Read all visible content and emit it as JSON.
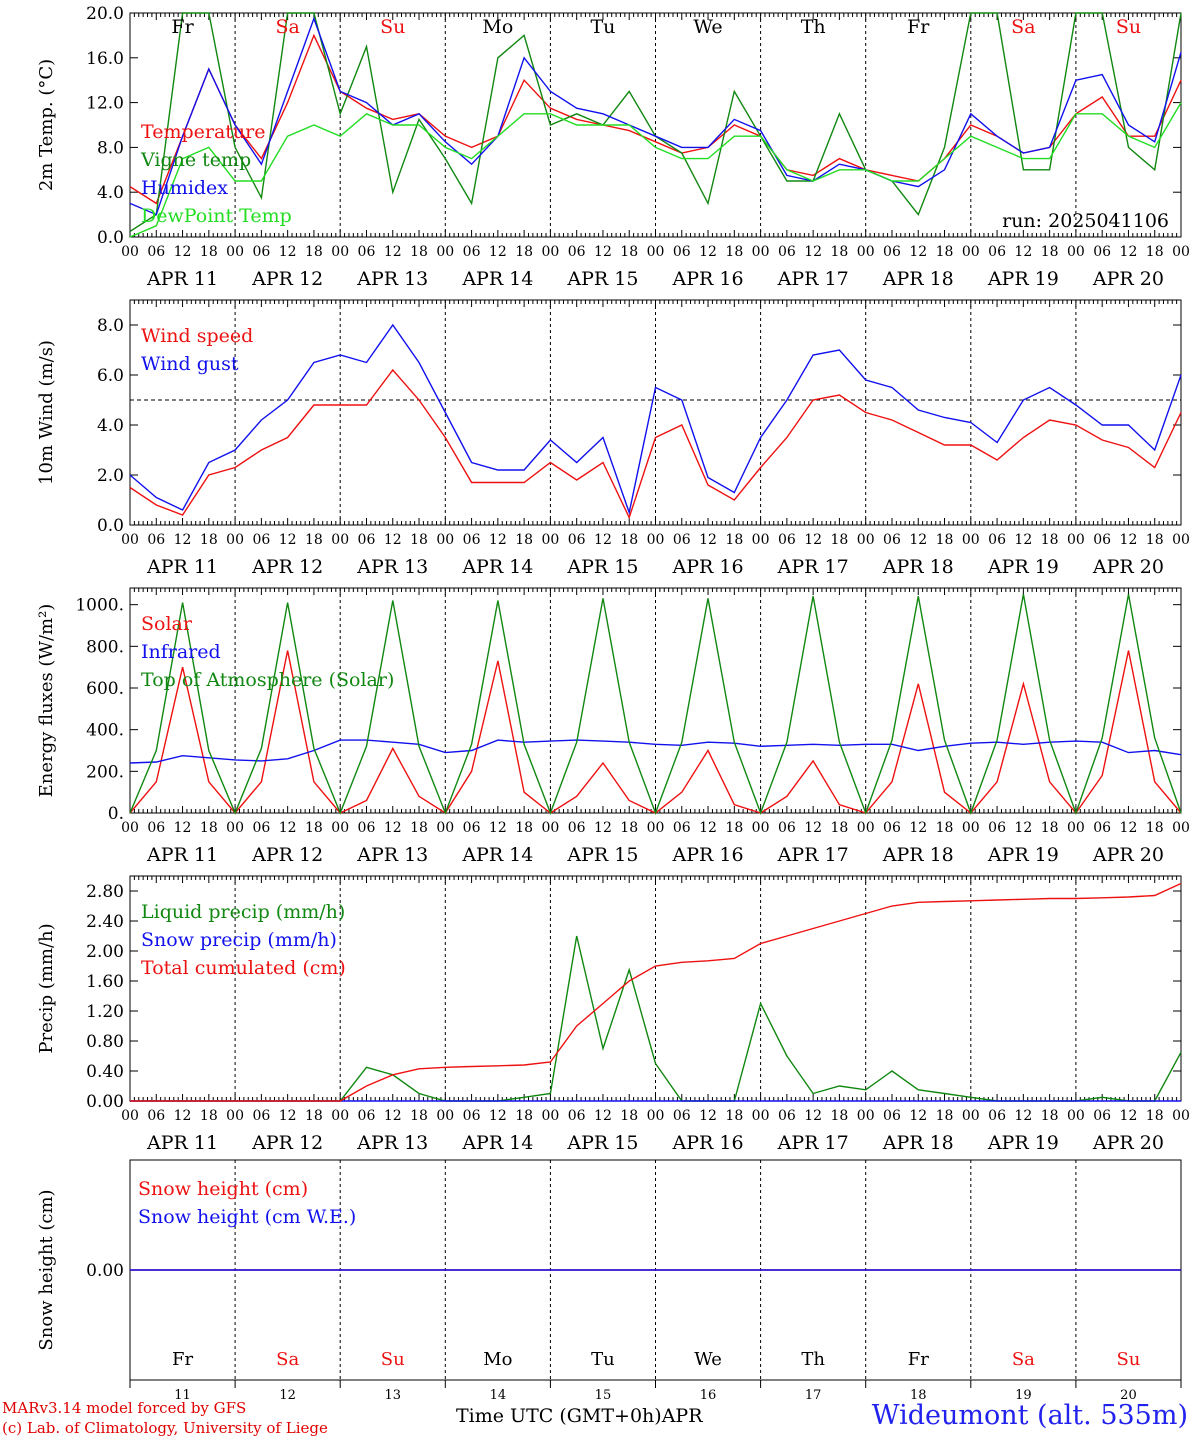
{
  "footer": {
    "model_line": "MARv3.14 model forced by GFS",
    "credit_line": "(c) Lab. of Climatology, University of Liege",
    "time_label": "Time UTC (GMT+0h)",
    "month_label": "APR",
    "station": "Wideumont (alt. 535m)"
  },
  "run_label": "run: 2025041106",
  "days": [
    "APR 11",
    "APR 12",
    "APR 13",
    "APR 14",
    "APR 15",
    "APR 16",
    "APR 17",
    "APR 18",
    "APR 19",
    "APR 20"
  ],
  "day_numbers": [
    "11",
    "12",
    "13",
    "14",
    "15",
    "16",
    "17",
    "18",
    "19",
    "20"
  ],
  "weekdays": [
    "Fr",
    "Sa",
    "Su",
    "Mo",
    "Tu",
    "We",
    "Th",
    "Fr",
    "Sa",
    "Su"
  ],
  "weekend_flags": [
    false,
    true,
    true,
    false,
    false,
    false,
    false,
    false,
    true,
    true
  ],
  "hour_ticks": [
    "00",
    "06",
    "12",
    "18"
  ],
  "colors": {
    "red": "#ee1111",
    "blue": "#1111ee",
    "green": "#118811",
    "lightgreen": "#22dd22",
    "weekend": "#ee1111"
  },
  "chart_data": [
    {
      "type": "line",
      "ylabel": "2m Temp. (°C)",
      "ylim": [
        0,
        20
      ],
      "yticks": [
        "0.0",
        "4.0",
        "8.0",
        "12.0",
        "16.0",
        "20.0"
      ],
      "x": [
        0,
        6,
        12,
        18,
        24,
        30,
        36,
        42,
        48,
        54,
        60,
        66,
        72,
        78,
        84,
        90,
        96,
        102,
        108,
        114,
        120,
        126,
        132,
        138,
        144,
        150,
        156,
        162,
        168,
        174,
        180,
        186,
        192,
        198,
        204,
        210,
        216,
        222,
        228,
        234,
        240
      ],
      "series": [
        {
          "name": "Temperature",
          "color": "#ee1111",
          "values": [
            4.5,
            3,
            9,
            15,
            10,
            7,
            12,
            18,
            13,
            11.5,
            10.5,
            11,
            9,
            8,
            9,
            14,
            11.5,
            10.5,
            10,
            9.5,
            8.5,
            7.5,
            8,
            10,
            9,
            6,
            5.5,
            7,
            6,
            5.5,
            5,
            7,
            10,
            9,
            7.5,
            8,
            11,
            12.5,
            9,
            9,
            14
          ]
        },
        {
          "name": "Vigne temp",
          "color": "#118811",
          "values": [
            0.5,
            2,
            20,
            20,
            8,
            3.5,
            20,
            20,
            11,
            17,
            4,
            10.5,
            7,
            3,
            16,
            18,
            10,
            11,
            10,
            13,
            9,
            7.5,
            3,
            13,
            9,
            5,
            5,
            11,
            6,
            5,
            2,
            8,
            20,
            20,
            6,
            6,
            20,
            20,
            8,
            6,
            20
          ]
        },
        {
          "name": "Humidex",
          "color": "#1111ee",
          "values": [
            3,
            2,
            9,
            15,
            10,
            6.5,
            13,
            19.5,
            13,
            12,
            10,
            11,
            8.5,
            6.5,
            9,
            16,
            13,
            11.5,
            11,
            10,
            9,
            8,
            8,
            10.5,
            9.5,
            5.5,
            5,
            6.5,
            6,
            5,
            4.5,
            6,
            11,
            9,
            7.5,
            8,
            14,
            14.5,
            10,
            8.5,
            16.5
          ]
        },
        {
          "name": "DewPoint Temp",
          "color": "#22dd22",
          "values": [
            0,
            1,
            7,
            8,
            5,
            5,
            9,
            10,
            9,
            11,
            10,
            10,
            8,
            7,
            9,
            11,
            11,
            10,
            10,
            10,
            8,
            7,
            7,
            9,
            9,
            6,
            5,
            6,
            6,
            5,
            5,
            7,
            9,
            8,
            7,
            7,
            11,
            11,
            9,
            8,
            12
          ]
        }
      ]
    },
    {
      "type": "line",
      "ylabel": "10m Wind (m/s)",
      "ylim": [
        0,
        9
      ],
      "yticks": [
        "0.0",
        "2.0",
        "4.0",
        "6.0",
        "8.0"
      ],
      "reference_line": 5,
      "x": [
        0,
        6,
        12,
        18,
        24,
        30,
        36,
        42,
        48,
        54,
        60,
        66,
        72,
        78,
        84,
        90,
        96,
        102,
        108,
        114,
        120,
        126,
        132,
        138,
        144,
        150,
        156,
        162,
        168,
        174,
        180,
        186,
        192,
        198,
        204,
        210,
        216,
        222,
        228,
        234,
        240
      ],
      "series": [
        {
          "name": "Wind speed",
          "color": "#ee1111",
          "values": [
            1.5,
            0.8,
            0.4,
            2,
            2.3,
            3,
            3.5,
            4.8,
            4.8,
            4.8,
            6.2,
            5,
            3.5,
            1.7,
            1.7,
            1.7,
            2.5,
            1.8,
            2.5,
            0.3,
            3.5,
            4,
            1.6,
            1,
            2.3,
            3.5,
            5.0,
            5.2,
            4.5,
            4.2,
            3.7,
            3.2,
            3.2,
            2.6,
            3.5,
            4.2,
            4.0,
            3.4,
            3.1,
            2.3,
            4.5
          ]
        },
        {
          "name": "Wind gust",
          "color": "#1111ee",
          "values": [
            2,
            1.1,
            0.6,
            2.5,
            3,
            4.2,
            5,
            6.5,
            6.8,
            6.5,
            8,
            6.5,
            4.5,
            2.5,
            2.2,
            2.2,
            3.4,
            2.5,
            3.5,
            0.5,
            5.5,
            5,
            1.9,
            1.3,
            3.5,
            5,
            6.8,
            7.0,
            5.8,
            5.5,
            4.6,
            4.3,
            4.1,
            3.3,
            5,
            5.5,
            4.8,
            4.0,
            4.0,
            3.0,
            6.0
          ]
        }
      ]
    },
    {
      "type": "line",
      "ylabel": "Energy fluxes (W/m²)",
      "ylim": [
        0,
        1080
      ],
      "yticks": [
        "0.",
        "200.",
        "400.",
        "600.",
        "800.",
        "1000."
      ],
      "x": [
        0,
        6,
        12,
        18,
        24,
        30,
        36,
        42,
        48,
        54,
        60,
        66,
        72,
        78,
        84,
        90,
        96,
        102,
        108,
        114,
        120,
        126,
        132,
        138,
        144,
        150,
        156,
        162,
        168,
        174,
        180,
        186,
        192,
        198,
        204,
        210,
        216,
        222,
        228,
        234,
        240
      ],
      "series": [
        {
          "name": "Solar",
          "color": "#ee1111",
          "values": [
            0,
            150,
            700,
            150,
            0,
            150,
            780,
            150,
            0,
            60,
            310,
            80,
            0,
            200,
            730,
            100,
            0,
            80,
            240,
            60,
            0,
            100,
            300,
            40,
            0,
            80,
            250,
            40,
            0,
            150,
            620,
            100,
            0,
            150,
            620,
            150,
            0,
            180,
            780,
            150,
            0
          ]
        },
        {
          "name": "Infrared",
          "color": "#1111ee",
          "values": [
            240,
            245,
            275,
            265,
            255,
            250,
            260,
            300,
            350,
            350,
            340,
            330,
            290,
            300,
            350,
            340,
            345,
            350,
            345,
            340,
            330,
            325,
            340,
            335,
            320,
            325,
            330,
            325,
            330,
            330,
            300,
            320,
            335,
            340,
            330,
            340,
            345,
            340,
            290,
            300,
            280
          ]
        },
        {
          "name": "Top of Atmosphere (Solar)",
          "color": "#118811",
          "values": [
            0,
            300,
            1010,
            300,
            0,
            310,
            1010,
            310,
            0,
            320,
            1020,
            320,
            0,
            330,
            1020,
            330,
            0,
            340,
            1030,
            340,
            0,
            340,
            1030,
            340,
            0,
            340,
            1040,
            340,
            0,
            350,
            1040,
            350,
            0,
            350,
            1050,
            350,
            0,
            360,
            1050,
            360,
            0
          ]
        }
      ]
    },
    {
      "type": "line",
      "ylabel": "Precip (mm/h)",
      "ylim": [
        0,
        3.0
      ],
      "yticks": [
        "0.00",
        "0.40",
        "0.80",
        "1.20",
        "1.60",
        "2.00",
        "2.40",
        "2.80"
      ],
      "x": [
        0,
        6,
        12,
        18,
        24,
        30,
        36,
        42,
        48,
        54,
        60,
        66,
        72,
        78,
        84,
        90,
        96,
        102,
        108,
        114,
        120,
        126,
        132,
        138,
        144,
        150,
        156,
        162,
        168,
        174,
        180,
        186,
        192,
        198,
        204,
        210,
        216,
        222,
        228,
        234,
        240
      ],
      "series": [
        {
          "name": "Liquid precip (mm/h)",
          "color": "#118811",
          "values": [
            0,
            0,
            0,
            0,
            0,
            0,
            0,
            0,
            0,
            0.45,
            0.35,
            0.1,
            0,
            0,
            0,
            0.05,
            0.1,
            2.2,
            0.7,
            1.75,
            0.5,
            0,
            0,
            0,
            1.3,
            0.6,
            0.1,
            0.2,
            0.15,
            0.4,
            0.15,
            0.1,
            0.05,
            0,
            0,
            0,
            0,
            0.05,
            0,
            0,
            0.65
          ]
        },
        {
          "name": "Snow precip (mm/h)",
          "color": "#1111ee",
          "values": [
            0,
            0,
            0,
            0,
            0,
            0,
            0,
            0,
            0,
            0,
            0,
            0,
            0,
            0,
            0,
            0,
            0,
            0,
            0,
            0,
            0,
            0,
            0,
            0,
            0,
            0,
            0,
            0,
            0,
            0,
            0,
            0,
            0,
            0,
            0,
            0,
            0,
            0,
            0,
            0,
            0
          ]
        },
        {
          "name": "Total cumulated (cm)",
          "color": "#ee1111",
          "values": [
            0,
            0,
            0,
            0,
            0,
            0,
            0,
            0,
            0,
            0.2,
            0.35,
            0.43,
            0.45,
            0.46,
            0.47,
            0.48,
            0.52,
            1.0,
            1.3,
            1.6,
            1.8,
            1.85,
            1.87,
            1.9,
            2.1,
            2.2,
            2.3,
            2.4,
            2.5,
            2.6,
            2.65,
            2.66,
            2.67,
            2.68,
            2.69,
            2.7,
            2.7,
            2.71,
            2.72,
            2.74,
            2.9
          ]
        }
      ]
    },
    {
      "type": "line",
      "ylabel": "Snow height (cm)",
      "ylim": [
        -1,
        1
      ],
      "yticks": [
        "0.00"
      ],
      "x": [
        0,
        240
      ],
      "series": [
        {
          "name": "Snow height (cm)",
          "color": "#ee1111",
          "values": [
            0,
            0
          ]
        },
        {
          "name": "Snow height (cm W.E.)",
          "color": "#1111ee",
          "values": [
            0,
            0
          ]
        }
      ]
    }
  ]
}
